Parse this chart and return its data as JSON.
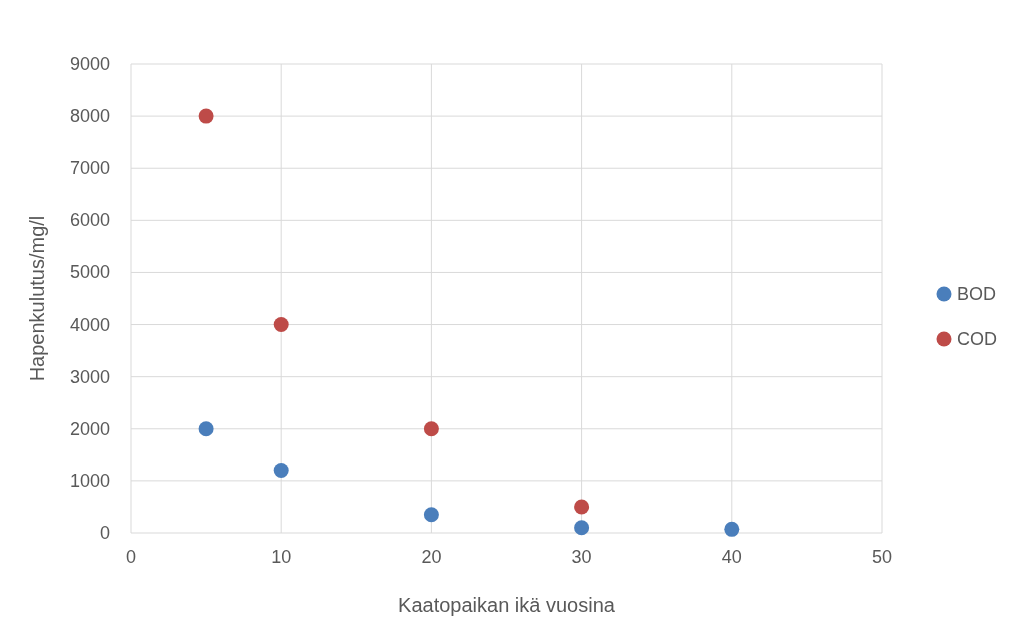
{
  "chart_data": {
    "type": "scatter",
    "xlabel": "Kaatopaikan ikä vuosina",
    "ylabel": "Hapenkulutus/mg/l",
    "xlim": [
      0,
      50
    ],
    "xticks": [
      0,
      10,
      20,
      30,
      40,
      50
    ],
    "ylim": [
      0,
      9000
    ],
    "yticks": [
      0,
      1000,
      2000,
      3000,
      4000,
      5000,
      6000,
      7000,
      8000,
      9000
    ],
    "grid": true,
    "legend": "right",
    "marker": "circle",
    "series": [
      {
        "name": "BOD",
        "color": "#4a7ebb",
        "x": [
          5,
          10,
          20,
          30,
          40
        ],
        "values": [
          2000,
          1200,
          350,
          100,
          70
        ]
      },
      {
        "name": "COD",
        "color": "#be4b48",
        "x": [
          5,
          10,
          20,
          30
        ],
        "values": [
          8000,
          4000,
          2000,
          500
        ]
      }
    ]
  }
}
